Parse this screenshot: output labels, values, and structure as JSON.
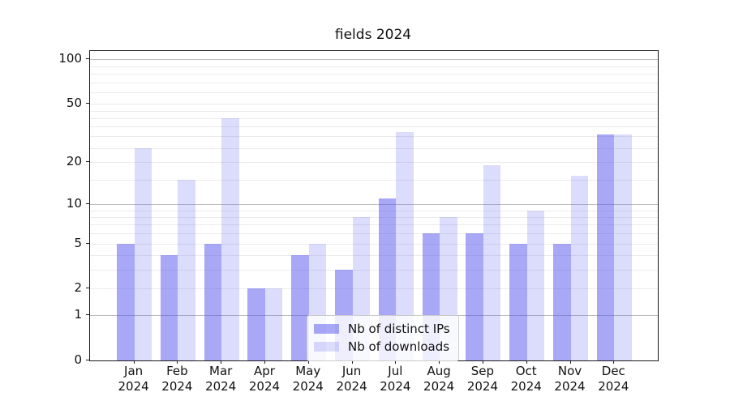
{
  "title": "fields 2024",
  "legend": {
    "items": [
      {
        "label": "Nb of distinct IPs",
        "color": "#a9a9f6"
      },
      {
        "label": "Nb of downloads",
        "color": "#dcdcf9"
      }
    ]
  },
  "chart_data": {
    "type": "bar",
    "title": "fields 2024",
    "categories": [
      "Jan 2024",
      "Feb 2024",
      "Mar 2024",
      "Apr 2024",
      "May 2024",
      "Jun 2024",
      "Jul 2024",
      "Aug 2024",
      "Sep 2024",
      "Oct 2024",
      "Nov 2024",
      "Dec 2024"
    ],
    "series": [
      {
        "name": "Nb of distinct IPs",
        "color": "#a9a9f6",
        "values": [
          5,
          4,
          5,
          2,
          4,
          3,
          11,
          6,
          6,
          5,
          5,
          31
        ]
      },
      {
        "name": "Nb of downloads",
        "color": "#dcdcf9",
        "values": [
          25,
          15,
          40,
          2,
          5,
          8,
          32,
          8,
          19,
          9,
          16,
          31
        ]
      }
    ],
    "xlabel": "",
    "ylabel": "",
    "y_axis": {
      "scale": "log(1+x)",
      "ticks": [
        100,
        50,
        20,
        10,
        5,
        2,
        1,
        0
      ],
      "ylim": [
        0,
        100
      ]
    },
    "grid": true,
    "legend_position": "lower center"
  }
}
